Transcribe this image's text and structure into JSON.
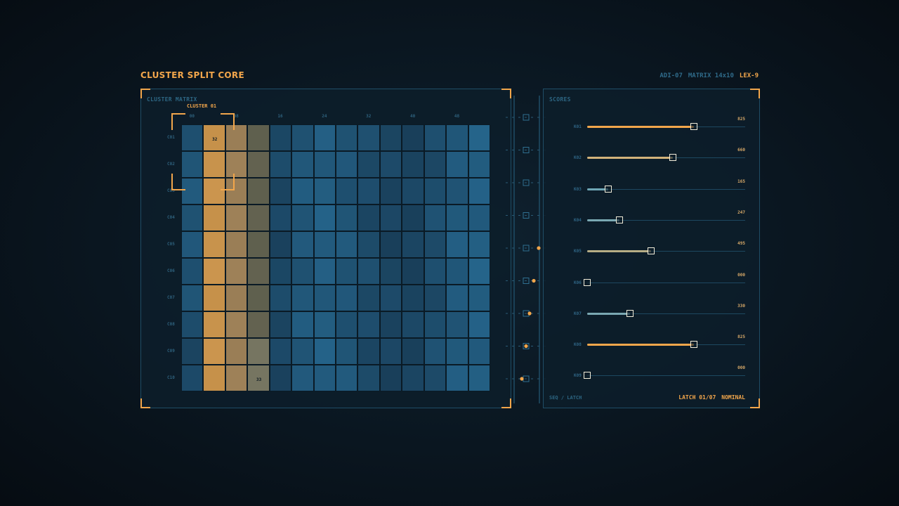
{
  "header": {
    "title": "CLUSTER SPLIT CORE",
    "tags": [
      "ADI-07",
      "MATRIX 14x10",
      "LEX-9"
    ]
  },
  "matrix": {
    "label": "CLUSTER MATRIX",
    "cluster_label": "CLUSTER 01",
    "col_ticks": [
      "00",
      "08",
      "16",
      "24",
      "32",
      "40",
      "48"
    ],
    "row_labels": [
      "C01",
      "C02",
      "C03",
      "C04",
      "C05",
      "C06",
      "C07",
      "C08",
      "C09",
      "C10"
    ],
    "cell_values": [
      {
        "row": 0,
        "col": 1,
        "value": "32"
      },
      {
        "row": 9,
        "col": 3,
        "value": "33"
      }
    ],
    "colors": {
      "orange": "#c6914a",
      "tan": "#9a7e56",
      "olive": "#5f604e",
      "blue_mid": "#26678e",
      "blue_dark": "#193f5a"
    }
  },
  "scores": {
    "label": "SCORES",
    "items": [
      {
        "name": "K01",
        "value": "825",
        "level": 0.825,
        "color": "#f2a64b"
      },
      {
        "name": "K02",
        "value": "660",
        "level": 0.66,
        "color": "#d2b27a"
      },
      {
        "name": "K03",
        "value": "165",
        "level": 0.165,
        "color": "#6fa7b6"
      },
      {
        "name": "K04",
        "value": "247",
        "level": 0.247,
        "color": "#7aa8b2"
      },
      {
        "name": "K05",
        "value": "495",
        "level": 0.495,
        "color": "#b6ad85"
      },
      {
        "name": "K06",
        "value": "000",
        "level": 0.0,
        "color": "#6fa7b6"
      },
      {
        "name": "K07",
        "value": "330",
        "level": 0.33,
        "color": "#7aa8b2"
      },
      {
        "name": "K08",
        "value": "825",
        "level": 0.825,
        "color": "#f2a64b"
      },
      {
        "name": "K09",
        "value": "000",
        "level": 0.0,
        "color": "#6fa7b6"
      }
    ],
    "footer_left": "SEQ / LATCH",
    "latch": "LATCH 01/07",
    "status": "NOMINAL"
  }
}
